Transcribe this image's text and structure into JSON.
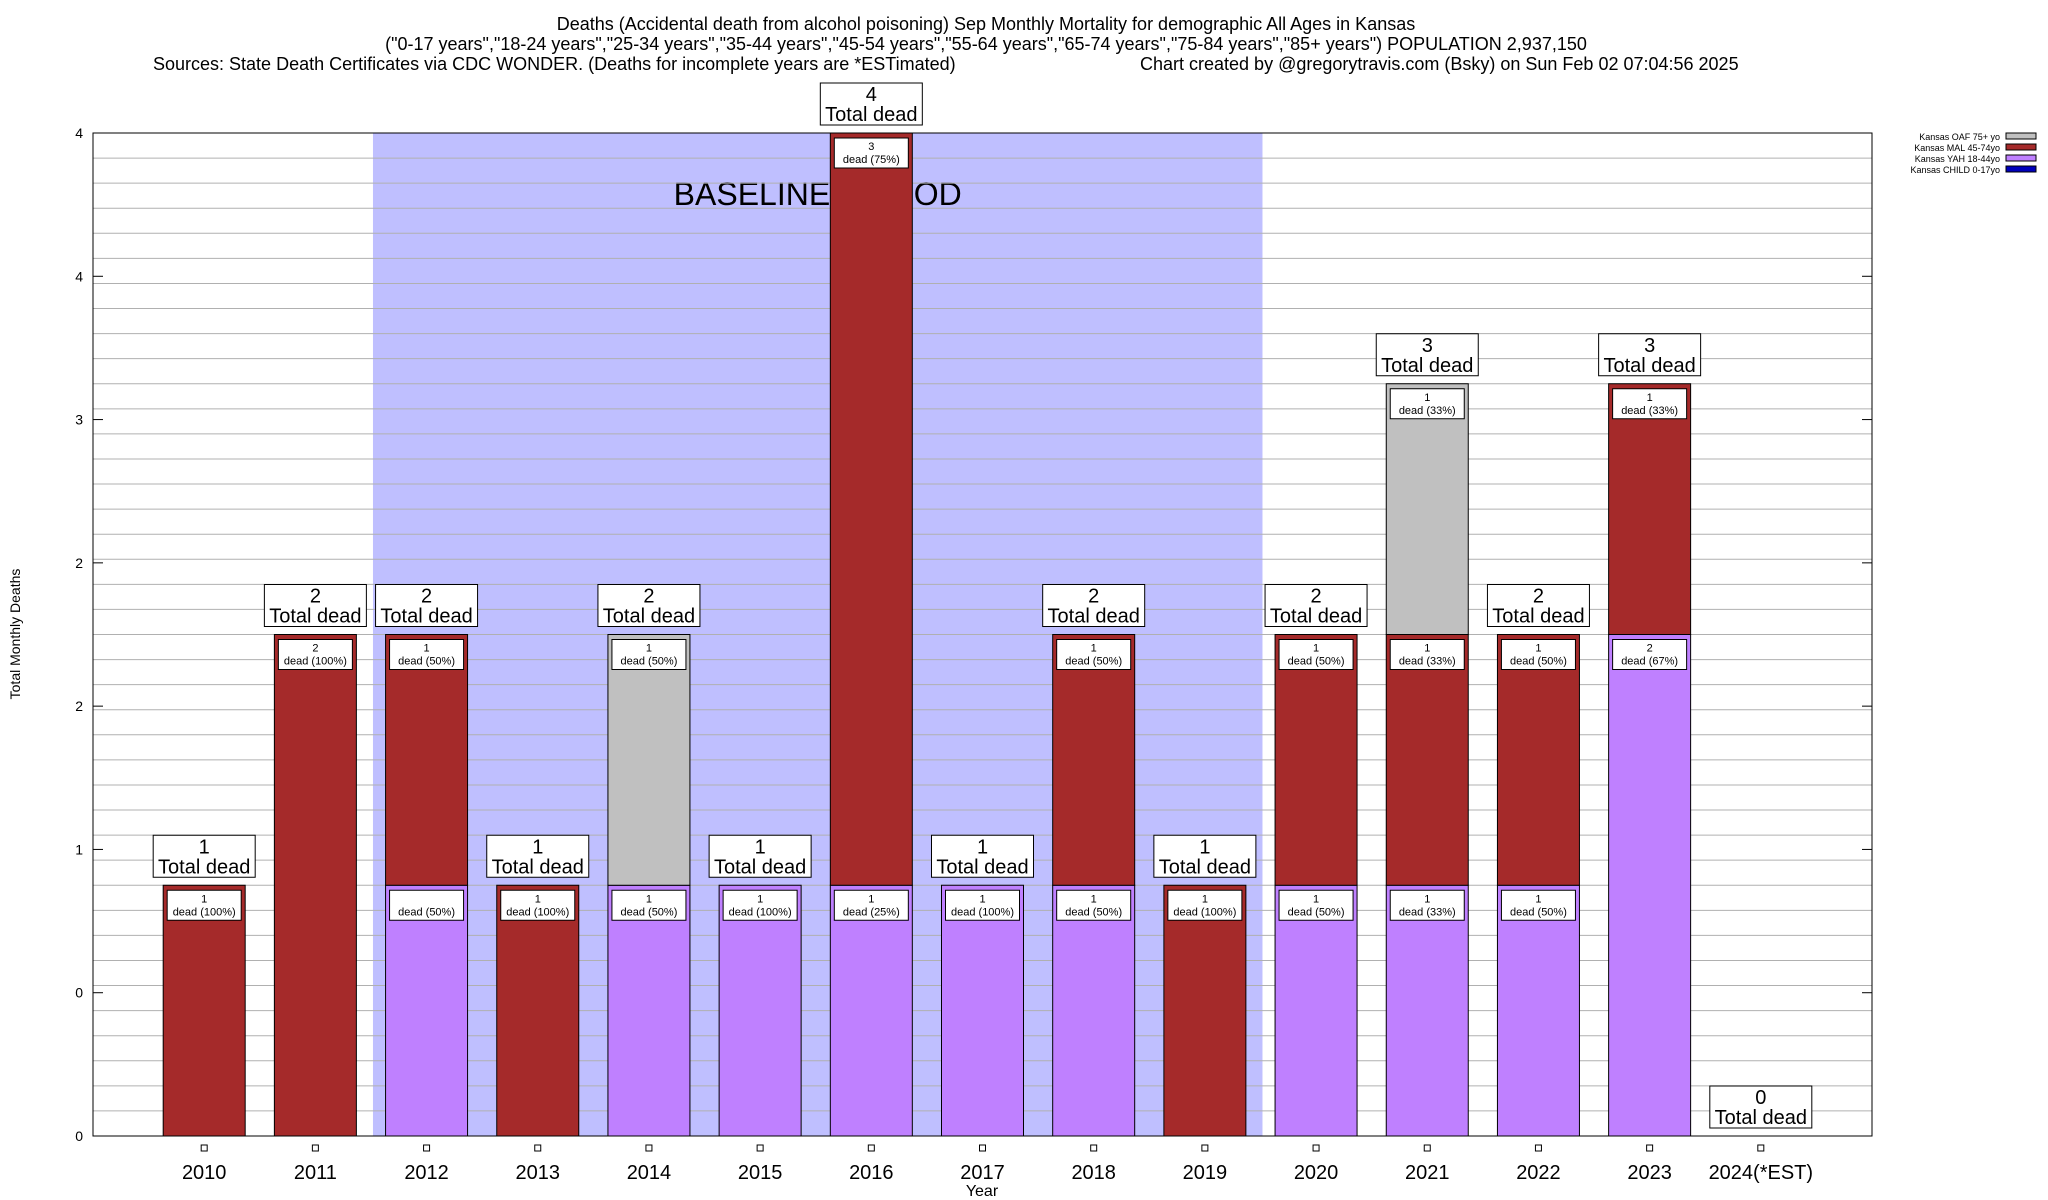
{
  "header": {
    "title_line1": "Deaths (Accidental death from alcohol poisoning) Sep Monthly Mortality for demographic All Ages in Kansas",
    "title_line2": "(\"0-17 years\",\"18-24 years\",\"25-34 years\",\"35-44 years\",\"45-54 years\",\"55-64 years\",\"65-74 years\",\"75-84 years\",\"85+ years\") POPULATION 2,937,150",
    "sources": "Sources: State Death Certificates via CDC WONDER. (Deaths for incomplete years are *ESTimated)",
    "credit": "Chart created by @gregorytravis.com (Bsky) on Sun Feb 02 07:04:56 2025"
  },
  "chart_data": {
    "type": "bar",
    "stacked": true,
    "xlabel": "Year",
    "ylabel": "Total Monthly Deaths",
    "ylim": [
      0,
      4
    ],
    "y_tick_labels": [
      "0",
      "0",
      "1",
      "2",
      "2",
      "3",
      "4",
      "4"
    ],
    "categories": [
      "2010",
      "2011",
      "2012",
      "2013",
      "2014",
      "2015",
      "2016",
      "2017",
      "2018",
      "2019",
      "2020",
      "2021",
      "2022",
      "2023",
      "2024(*EST)"
    ],
    "series": [
      {
        "name": "Kansas CHILD 0-17yo",
        "color": "#0000bb",
        "values": [
          0,
          0,
          0,
          0,
          0,
          0,
          0,
          0,
          0,
          0,
          0,
          0,
          0,
          0,
          0
        ]
      },
      {
        "name": "Kansas YAH 18-44yo",
        "color": "#bf80ff",
        "values": [
          0,
          0,
          1,
          0,
          1,
          1,
          1,
          1,
          1,
          0,
          1,
          1,
          1,
          2,
          0
        ]
      },
      {
        "name": "Kansas MAL 45-74yo",
        "color": "#a52a2a",
        "values": [
          1,
          2,
          1,
          1,
          0,
          0,
          3,
          0,
          1,
          1,
          1,
          1,
          1,
          1,
          0
        ]
      },
      {
        "name": "Kansas OAF 75+ yo",
        "color": "#c0c0c0",
        "values": [
          0,
          0,
          0,
          0,
          1,
          0,
          0,
          0,
          0,
          0,
          0,
          1,
          0,
          0,
          0
        ]
      }
    ],
    "totals": [
      1,
      2,
      2,
      1,
      2,
      1,
      4,
      1,
      2,
      1,
      2,
      3,
      2,
      3,
      0
    ],
    "total_label_suffix": "Total dead",
    "segment_labels": [
      [
        {
          "series": 2,
          "line1": "1",
          "line2": "dead (100%)"
        }
      ],
      [
        {
          "series": 2,
          "line1": "2",
          "line2": "dead (100%)"
        }
      ],
      [
        {
          "series": 1,
          "line1": "",
          "line2": "dead (50%)"
        },
        {
          "series": 2,
          "line1": "1",
          "line2": "dead (50%)"
        }
      ],
      [
        {
          "series": 2,
          "line1": "1",
          "line2": "dead (100%)"
        }
      ],
      [
        {
          "series": 1,
          "line1": "1",
          "line2": "dead (50%)"
        },
        {
          "series": 3,
          "line1": "1",
          "line2": "dead (50%)"
        }
      ],
      [
        {
          "series": 1,
          "line1": "1",
          "line2": "dead (100%)"
        }
      ],
      [
        {
          "series": 1,
          "line1": "1",
          "line2": "dead (25%)"
        },
        {
          "series": 2,
          "line1": "3",
          "line2": "dead (75%)"
        }
      ],
      [
        {
          "series": 1,
          "line1": "1",
          "line2": "dead (100%)"
        }
      ],
      [
        {
          "series": 1,
          "line1": "1",
          "line2": "dead (50%)"
        },
        {
          "series": 2,
          "line1": "1",
          "line2": "dead (50%)"
        }
      ],
      [
        {
          "series": 2,
          "line1": "1",
          "line2": "dead (100%)"
        }
      ],
      [
        {
          "series": 1,
          "line1": "1",
          "line2": "dead (50%)"
        },
        {
          "series": 2,
          "line1": "1",
          "line2": "dead (50%)"
        }
      ],
      [
        {
          "series": 1,
          "line1": "1",
          "line2": "dead (33%)"
        },
        {
          "series": 2,
          "line1": "1",
          "line2": "dead (33%)"
        },
        {
          "series": 3,
          "line1": "1",
          "line2": "dead (33%)"
        }
      ],
      [
        {
          "series": 1,
          "line1": "1",
          "line2": "dead (50%)"
        },
        {
          "series": 2,
          "line1": "1",
          "line2": "dead (50%)"
        }
      ],
      [
        {
          "series": 1,
          "line1": "2",
          "line2": "dead (67%)"
        },
        {
          "series": 2,
          "line1": "1",
          "line2": "dead (33%)"
        }
      ],
      []
    ],
    "baseline": {
      "label": "BASELINE PERIOD",
      "from": "2012",
      "to": "2019",
      "color": "#bfbfff"
    },
    "legend_placement": "top-right",
    "grid": true
  }
}
